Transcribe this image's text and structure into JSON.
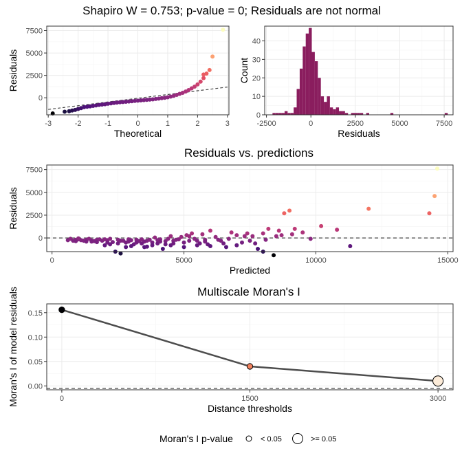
{
  "title": "Shapiro W = 0.753; p-value = 0; Residuals are not normal",
  "chart_data": [
    {
      "id": "qq",
      "type": "scatter",
      "xlabel": "Theoretical",
      "ylabel": "Residuals",
      "xlim": [
        -3.05,
        3.05
      ],
      "ylim": [
        -1900,
        8000
      ],
      "x_ticks": [
        -3,
        -2,
        -1,
        0,
        1,
        2,
        3
      ],
      "y_ticks": [
        0,
        2500,
        5000,
        7500
      ],
      "reference_line": {
        "x": [
          -3,
          3
        ],
        "y": [
          -1300,
          1200
        ],
        "style": "dashed"
      },
      "points": [
        [
          -2.85,
          -1750
        ],
        [
          -2.45,
          -1550
        ],
        [
          -2.3,
          -1500
        ],
        [
          -2.2,
          -1420
        ],
        [
          -2.1,
          -1350
        ],
        [
          -2.0,
          -1250
        ],
        [
          -1.9,
          -1150
        ],
        [
          -1.8,
          -1050
        ],
        [
          -1.7,
          -1000
        ],
        [
          -1.6,
          -960
        ],
        [
          -1.5,
          -900
        ],
        [
          -1.4,
          -850
        ],
        [
          -1.3,
          -800
        ],
        [
          -1.2,
          -760
        ],
        [
          -1.1,
          -720
        ],
        [
          -1.0,
          -660
        ],
        [
          -0.9,
          -620
        ],
        [
          -0.8,
          -580
        ],
        [
          -0.7,
          -540
        ],
        [
          -0.6,
          -500
        ],
        [
          -0.5,
          -470
        ],
        [
          -0.4,
          -440
        ],
        [
          -0.3,
          -410
        ],
        [
          -0.2,
          -380
        ],
        [
          -0.1,
          -350
        ],
        [
          0.0,
          -320
        ],
        [
          0.1,
          -290
        ],
        [
          0.2,
          -260
        ],
        [
          0.3,
          -230
        ],
        [
          0.4,
          -200
        ],
        [
          0.5,
          -170
        ],
        [
          0.6,
          -130
        ],
        [
          0.7,
          -90
        ],
        [
          0.8,
          -40
        ],
        [
          0.9,
          0
        ],
        [
          1.0,
          60
        ],
        [
          1.1,
          130
        ],
        [
          1.2,
          220
        ],
        [
          1.3,
          330
        ],
        [
          1.4,
          440
        ],
        [
          1.5,
          560
        ],
        [
          1.6,
          700
        ],
        [
          1.7,
          860
        ],
        [
          1.8,
          1050
        ],
        [
          1.9,
          1250
        ],
        [
          2.0,
          1500
        ],
        [
          2.1,
          1800
        ],
        [
          2.2,
          2200
        ],
        [
          2.3,
          2700
        ],
        [
          2.4,
          3100
        ],
        [
          2.2,
          2600
        ],
        [
          2.5,
          4600
        ],
        [
          2.85,
          7600
        ]
      ]
    },
    {
      "id": "hist",
      "type": "bar",
      "xlabel": "Residuals",
      "ylabel": "Count",
      "xlim": [
        -2600,
        8000
      ],
      "ylim": [
        0,
        48
      ],
      "x_ticks": [
        -2500,
        0,
        2500,
        5000,
        7500
      ],
      "y_ticks": [
        0,
        10,
        20,
        30,
        40
      ],
      "bin_width": 170,
      "bins": [
        [
          -2075,
          1
        ],
        [
          -1905,
          1
        ],
        [
          -1735,
          1
        ],
        [
          -1565,
          1
        ],
        [
          -1395,
          2
        ],
        [
          -1225,
          1
        ],
        [
          -1055,
          1
        ],
        [
          -885,
          4
        ],
        [
          -715,
          14
        ],
        [
          -545,
          25
        ],
        [
          -375,
          37
        ],
        [
          -205,
          44
        ],
        [
          -35,
          47
        ],
        [
          135,
          34
        ],
        [
          305,
          29
        ],
        [
          475,
          20
        ],
        [
          645,
          10
        ],
        [
          815,
          7
        ],
        [
          985,
          10
        ],
        [
          1155,
          4
        ],
        [
          1325,
          3
        ],
        [
          1495,
          4
        ],
        [
          1665,
          2
        ],
        [
          1835,
          2
        ],
        [
          2005,
          1
        ],
        [
          2345,
          1
        ],
        [
          2515,
          1
        ],
        [
          2685,
          1
        ],
        [
          2855,
          1
        ],
        [
          3195,
          1
        ],
        [
          4555,
          1
        ],
        [
          7615,
          1
        ]
      ]
    },
    {
      "id": "resid_pred",
      "type": "scatter",
      "title": "Residuals vs. predictions",
      "xlabel": "Predicted",
      "ylabel": "Residuals",
      "xlim": [
        -200,
        15200
      ],
      "ylim": [
        -1500,
        8000
      ],
      "x_ticks": [
        0,
        5000,
        10000,
        15000
      ],
      "y_ticks": [
        0,
        2500,
        5000,
        7500
      ],
      "zero_line": 0,
      "points": [
        [
          600,
          -250
        ],
        [
          700,
          -100
        ],
        [
          800,
          -300
        ],
        [
          900,
          -200
        ],
        [
          1000,
          -150
        ],
        [
          1100,
          -250
        ],
        [
          1200,
          -300
        ],
        [
          1300,
          -200
        ],
        [
          1400,
          -100
        ],
        [
          1500,
          -280
        ],
        [
          1600,
          -350
        ],
        [
          1700,
          -200
        ],
        [
          1800,
          -150
        ],
        [
          1900,
          -300
        ],
        [
          2000,
          -800
        ],
        [
          2100,
          -250
        ],
        [
          2200,
          -100
        ],
        [
          2300,
          -450
        ],
        [
          2400,
          -1500
        ],
        [
          2500,
          -200
        ],
        [
          2600,
          -1700
        ],
        [
          2700,
          -300
        ],
        [
          2800,
          -500
        ],
        [
          2900,
          -150
        ],
        [
          3000,
          -250
        ],
        [
          3100,
          -700
        ],
        [
          3200,
          -200
        ],
        [
          3300,
          -350
        ],
        [
          3400,
          -150
        ],
        [
          3500,
          -1000
        ],
        [
          3600,
          -300
        ],
        [
          3700,
          -200
        ],
        [
          3800,
          -500
        ],
        [
          3900,
          50
        ],
        [
          4000,
          -250
        ],
        [
          4100,
          -150
        ],
        [
          4200,
          -1200
        ],
        [
          4300,
          -350
        ],
        [
          4400,
          -100
        ],
        [
          4500,
          200
        ],
        [
          4600,
          -300
        ],
        [
          4700,
          -200
        ],
        [
          4800,
          -150
        ],
        [
          4900,
          100
        ],
        [
          5000,
          -500
        ],
        [
          5100,
          300
        ],
        [
          5200,
          200
        ],
        [
          5300,
          500
        ],
        [
          5400,
          -100
        ],
        [
          5500,
          -800
        ],
        [
          5600,
          -600
        ],
        [
          5700,
          400
        ],
        [
          5800,
          -200
        ],
        [
          5900,
          -700
        ],
        [
          6000,
          800
        ],
        [
          6200,
          100
        ],
        [
          6400,
          -300
        ],
        [
          6600,
          -1000
        ],
        [
          6800,
          600
        ],
        [
          7000,
          300
        ],
        [
          7200,
          -500
        ],
        [
          7400,
          500
        ],
        [
          7600,
          200
        ],
        [
          7800,
          -1200
        ],
        [
          8000,
          -1500
        ],
        [
          8200,
          1000
        ],
        [
          8400,
          -1900
        ],
        [
          8600,
          800
        ],
        [
          8800,
          2700
        ],
        [
          9000,
          3000
        ],
        [
          9200,
          1000
        ],
        [
          9500,
          600
        ],
        [
          9800,
          -100
        ],
        [
          10200,
          1300
        ],
        [
          10800,
          900
        ],
        [
          11300,
          -900
        ],
        [
          12000,
          3200
        ],
        [
          14300,
          2700
        ],
        [
          14500,
          4600
        ],
        [
          14600,
          7600
        ],
        [
          1000,
          -50
        ],
        [
          1500,
          -400
        ],
        [
          2000,
          -150
        ],
        [
          2500,
          -600
        ],
        [
          3000,
          -900
        ],
        [
          3500,
          -400
        ],
        [
          4000,
          -600
        ],
        [
          4500,
          -800
        ],
        [
          5000,
          -1000
        ],
        [
          5500,
          -300
        ],
        [
          6000,
          -900
        ],
        [
          6500,
          -600
        ],
        [
          7000,
          -800
        ],
        [
          7500,
          -300
        ],
        [
          8000,
          500
        ],
        [
          8500,
          200
        ],
        [
          3200,
          -500
        ],
        [
          2800,
          -1000
        ],
        [
          3800,
          -800
        ],
        [
          4300,
          -700
        ],
        [
          900,
          -350
        ],
        [
          1300,
          -400
        ],
        [
          1700,
          -450
        ],
        [
          2100,
          -500
        ],
        [
          2600,
          -300
        ],
        [
          3400,
          -600
        ],
        [
          3600,
          -950
        ],
        [
          4100,
          -400
        ],
        [
          4600,
          -600
        ],
        [
          5200,
          -300
        ],
        [
          5800,
          -400
        ],
        [
          6300,
          -200
        ],
        [
          6700,
          -100
        ],
        [
          7300,
          200
        ],
        [
          7700,
          -600
        ],
        [
          8100,
          -200
        ],
        [
          8700,
          300
        ],
        [
          9100,
          400
        ],
        [
          2200,
          -700
        ],
        [
          2900,
          -400
        ]
      ]
    },
    {
      "id": "moran",
      "type": "line",
      "title": "Multiscale Moran's I",
      "xlabel": "Distance thresholds",
      "ylabel": "Moran's I of model residuals",
      "xlim": [
        -120,
        3120
      ],
      "ylim": [
        -0.008,
        0.168
      ],
      "x_ticks": [
        0,
        1500,
        3000
      ],
      "y_ticks": [
        0.0,
        0.05,
        0.1,
        0.15
      ],
      "y_tick_labels": [
        "0.00",
        "0.05",
        "0.10",
        "0.15"
      ],
      "zero_line": -0.005,
      "x": [
        0,
        1500,
        3000
      ],
      "y": [
        0.156,
        0.04,
        0.01
      ],
      "p_value_size": [
        "< 0.05",
        "< 0.05",
        ">= 0.05"
      ],
      "point_colors": [
        "#000004",
        "#F1815E",
        "#FCEBD8"
      ]
    }
  ],
  "legend": {
    "title": "Moran's I p-value",
    "items": [
      {
        "label": "< 0.05"
      },
      {
        "label": ">= 0.05"
      }
    ]
  }
}
